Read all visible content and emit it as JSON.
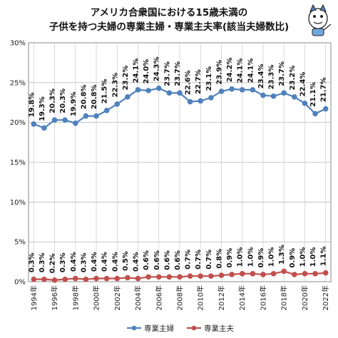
{
  "chart_data": {
    "type": "line",
    "title": [
      "アメリカ合衆国における15歳未満の",
      "子供を持つ夫婦の専業主婦・専業主夫率(該当夫婦数比)"
    ],
    "x": [
      1994,
      1995,
      1996,
      1997,
      1998,
      1999,
      2000,
      2001,
      2002,
      2003,
      2004,
      2005,
      2006,
      2007,
      2008,
      2009,
      2010,
      2011,
      2012,
      2013,
      2014,
      2015,
      2016,
      2017,
      2018,
      2019,
      2020,
      2021,
      2022
    ],
    "x_tick_labels": [
      "1994年",
      "1996年",
      "1998年",
      "2000年",
      "2002年",
      "2004年",
      "2006年",
      "2008年",
      "2010年",
      "2012年",
      "2014年",
      "2016年",
      "2018年",
      "2020年",
      "2022年"
    ],
    "y_tick_labels": [
      "0%",
      "5%",
      "10%",
      "15%",
      "20%",
      "25%",
      "30%"
    ],
    "ylim": [
      0,
      30
    ],
    "grid": true,
    "legend_position": "bottom",
    "series": [
      {
        "name": "専業主婦",
        "color": "#4f81bd",
        "values": [
          19.8,
          19.3,
          20.3,
          20.3,
          19.9,
          20.8,
          20.8,
          21.5,
          22.3,
          23.2,
          24.1,
          24.0,
          24.3,
          23.7,
          23.7,
          22.6,
          22.7,
          23.1,
          23.9,
          24.2,
          24.1,
          24.1,
          23.4,
          23.3,
          23.7,
          23.2,
          22.4,
          21.1,
          21.7
        ],
        "labels": [
          "19.8%",
          "19.3%",
          "20.3%",
          "20.3%",
          "19.9%",
          "20.8%",
          "20.8%",
          "21.5%",
          "22.3%",
          "23.2%",
          "24.1%",
          "24.0%",
          "24.3%",
          "23.7%",
          "23.7%",
          "22.6%",
          "22.7%",
          "23.1%",
          "23.9%",
          "24.2%",
          "24.1%",
          "24.1%",
          "23.4%",
          "23.3%",
          "23.7%",
          "23.2%",
          "22.4%",
          "21.1%",
          "21.7%"
        ]
      },
      {
        "name": "専業主夫",
        "color": "#c0504d",
        "values": [
          0.3,
          0.3,
          0.2,
          0.3,
          0.4,
          0.3,
          0.4,
          0.4,
          0.4,
          0.5,
          0.4,
          0.6,
          0.6,
          0.6,
          0.6,
          0.7,
          0.7,
          0.7,
          0.8,
          0.9,
          1.0,
          1.0,
          0.9,
          1.0,
          1.3,
          0.9,
          1.0,
          1.0,
          1.1
        ],
        "labels": [
          "0.3%",
          "0.3%",
          "0.2%",
          "0.3%",
          "0.4%",
          "0.3%",
          "0.4%",
          "0.4%",
          "0.4%",
          "0.5%",
          "0.4%",
          "0.6%",
          "0.6%",
          "0.6%",
          "0.6%",
          "0.7%",
          "0.7%",
          "0.7%",
          "0.8%",
          "0.9%",
          "1.0%",
          "1.0%",
          "0.9%",
          "1.0%",
          "1.3%",
          "0.9%",
          "1.0%",
          "1.0%",
          "1.1%"
        ]
      }
    ]
  }
}
